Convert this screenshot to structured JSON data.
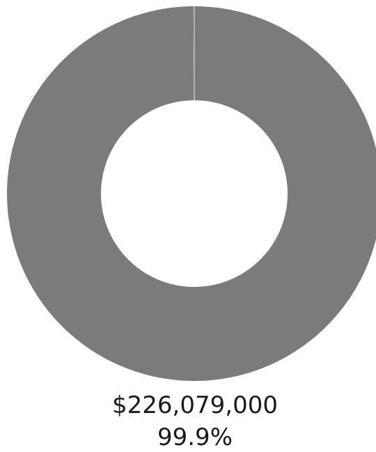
{
  "chart_data": {
    "type": "pie",
    "title": "",
    "donut": true,
    "slices": [
      {
        "value_label": "$226,079,000",
        "value": 226079000,
        "percent_label": "99.9%",
        "percent": 99.9,
        "color": "#7b7b7d"
      },
      {
        "value": 226310,
        "percent": 0.1,
        "color": "#7b7b7d"
      }
    ],
    "separator_color": "#e6e6e6"
  }
}
